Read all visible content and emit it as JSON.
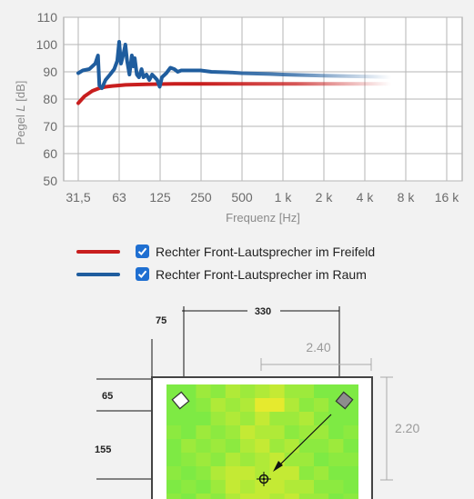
{
  "chart_data": {
    "type": "line",
    "xlabel": "Frequenz",
    "xunit": "[Hz]",
    "ylabel": "Pegel",
    "ylabel_var": "L",
    "yunit": "[dB]",
    "ylim": [
      50,
      110
    ],
    "yticks": [
      "50",
      "60",
      "70",
      "80",
      "90",
      "100",
      "110"
    ],
    "xticks": [
      "31,5",
      "63",
      "125",
      "250",
      "500",
      "1 k",
      "2 k",
      "4 k",
      "8 k",
      "16 k"
    ],
    "xscale": "log2-octave",
    "grid": true,
    "series": [
      {
        "name": "Rechter Front-Lautsprecher im Freifeld",
        "color": "#c81e1e",
        "x": [
          31.5,
          35,
          40,
          45,
          50,
          56,
          63,
          70,
          80,
          100,
          125,
          160,
          200,
          250,
          315,
          500,
          1000,
          2000,
          4000,
          7000
        ],
        "y": [
          78.5,
          81,
          83,
          84,
          84.5,
          84.8,
          85,
          85.2,
          85.3,
          85.4,
          85.5,
          85.6,
          85.6,
          85.6,
          85.6,
          85.6,
          85.6,
          85.6,
          85.6,
          85.6
        ]
      },
      {
        "name": "Rechter Front-Lautsprecher im Raum",
        "color": "#1f5d9e",
        "x": [
          31.5,
          34,
          38,
          42,
          44,
          45,
          47,
          50,
          54,
          58,
          61,
          63,
          65,
          68,
          70,
          72,
          75,
          78,
          80,
          82,
          85,
          88,
          92,
          95,
          100,
          105,
          110,
          115,
          120,
          125,
          130,
          140,
          150,
          160,
          170,
          180,
          200,
          250,
          300,
          400,
          500,
          800,
          1000,
          2000,
          4000,
          7000
        ],
        "y": [
          89.5,
          90.5,
          91,
          93,
          96,
          85,
          84,
          87,
          89,
          91,
          94,
          101,
          93,
          97,
          100,
          94,
          89,
          96,
          92,
          95,
          89,
          88,
          91,
          88,
          89,
          87,
          89,
          88,
          87,
          84.5,
          88,
          89.5,
          91.5,
          91,
          90,
          90.5,
          90.5,
          90.5,
          90,
          89.8,
          89.5,
          89.2,
          89,
          88.6,
          88.3,
          88
        ]
      }
    ]
  },
  "room": {
    "dim_width": "330",
    "dim_left": "75",
    "dim_top": "65",
    "dim_middle": "155",
    "room_width": "2.40",
    "room_depth": "2.20",
    "heatmap_colors": [
      "#7eea44",
      "#8cea40",
      "#9dea3c",
      "#b0ea38",
      "#c4ea34",
      "#d6ea30",
      "#e6ea2e"
    ]
  }
}
